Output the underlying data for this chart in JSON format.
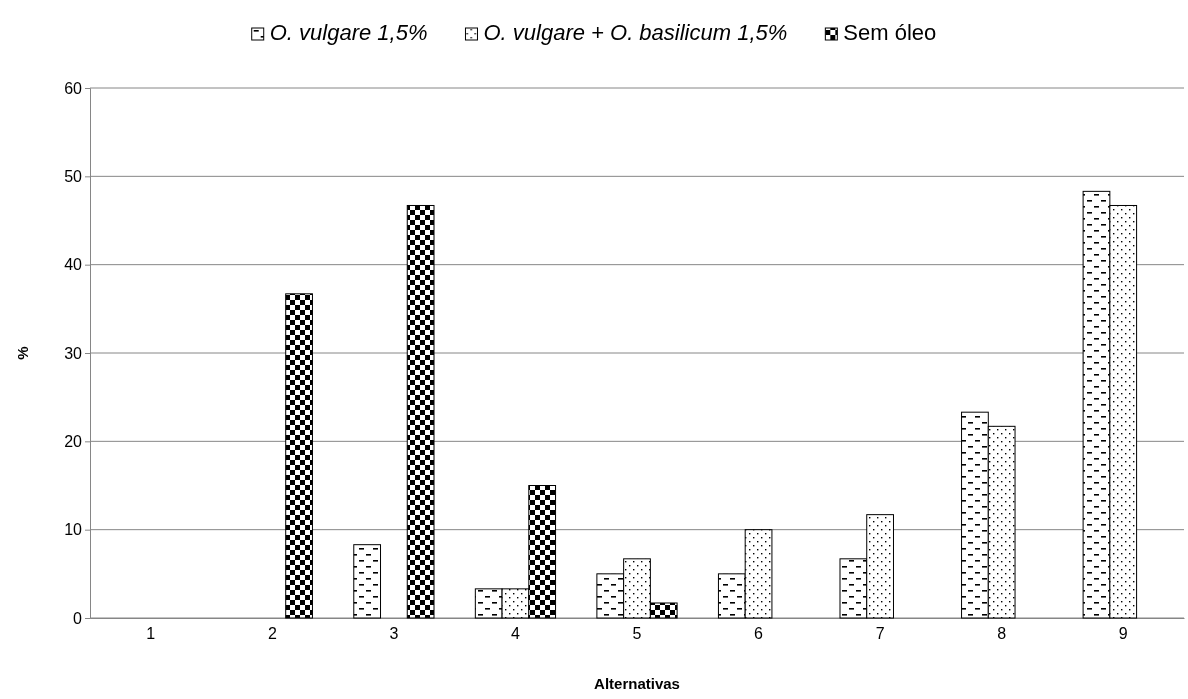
{
  "chart_data": {
    "type": "bar",
    "xlabel": "Alternativas",
    "ylabel": "%",
    "categories": [
      "1",
      "2",
      "3",
      "4",
      "5",
      "6",
      "7",
      "8",
      "9"
    ],
    "series": [
      {
        "name": "O. vulgare 1,5%",
        "color": "#000000",
        "values": [
          0,
          0,
          8.3,
          3.3,
          5,
          5,
          6.7,
          23.3,
          48.3
        ]
      },
      {
        "name": "O. vulgare + O. basilicum 1,5%",
        "color": "#000000",
        "values": [
          0,
          0,
          0,
          3.3,
          6.7,
          10,
          11.7,
          21.7,
          46.7
        ]
      },
      {
        "name": "Sem óleo",
        "color": "#000000",
        "values": [
          0,
          36.7,
          46.7,
          15,
          1.7,
          0,
          0,
          0,
          0
        ]
      }
    ],
    "ylim": [
      0,
      60
    ],
    "yticks": [
      0,
      10,
      20,
      30,
      40,
      50,
      60
    ],
    "grid": "y",
    "legend": "top"
  }
}
